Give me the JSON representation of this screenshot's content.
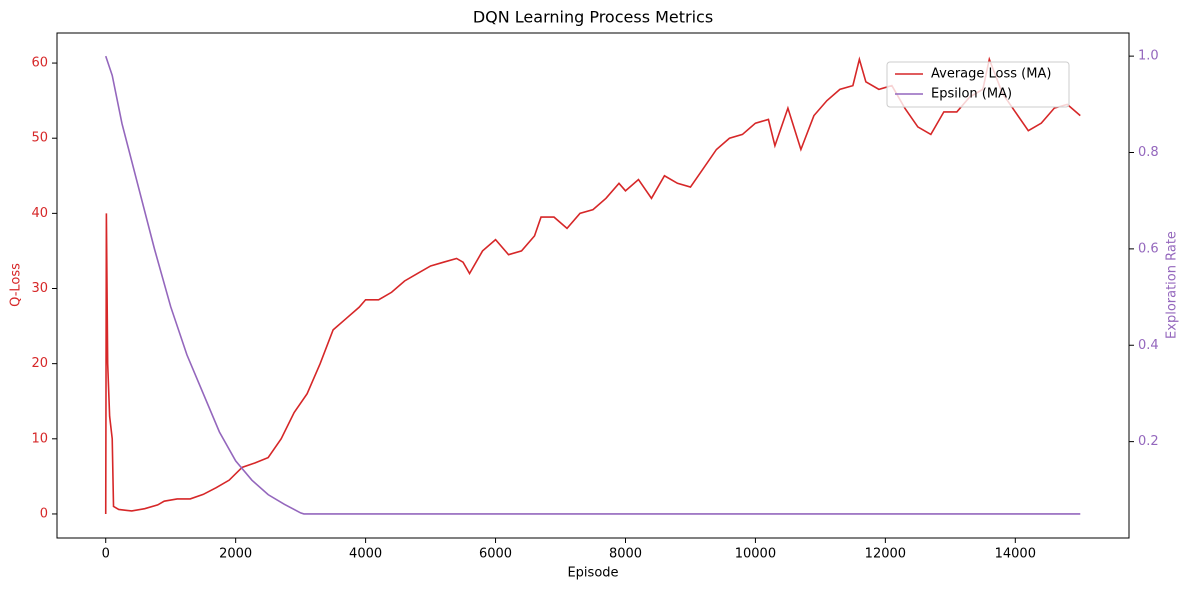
{
  "chart_data": {
    "type": "line",
    "title": "DQN Learning Process Metrics",
    "x_label": "Episode",
    "y_label": "Q-Loss",
    "y2_label": "Exploration Rate",
    "xlim": [
      -750,
      15750
    ],
    "xticks": [
      0,
      2000,
      4000,
      6000,
      8000,
      10000,
      12000,
      14000
    ],
    "ylim": [
      -3.2,
      64
    ],
    "yticks": [
      0,
      10,
      20,
      30,
      40,
      50,
      60
    ],
    "y_color": "#d62728",
    "y2lim": [
      0,
      1.048
    ],
    "y2ticks": [
      0.2,
      0.4,
      0.6,
      0.8,
      {
        "value": 1,
        "label": "1.0"
      }
    ],
    "y2_color": "#9467bd",
    "legend": "upper right",
    "series": [
      {
        "name": "Average Loss (MA)",
        "color": "#d62728",
        "x": [
          0,
          10,
          30,
          60,
          100,
          120,
          200,
          400,
          600,
          800,
          900,
          1100,
          1300,
          1500,
          1700,
          1900,
          2100,
          2300,
          2500,
          2700,
          2900,
          3100,
          3300,
          3500,
          3700,
          3900,
          4000,
          4200,
          4400,
          4600,
          4800,
          5000,
          5200,
          5400,
          5500,
          5600,
          5800,
          6000,
          6200,
          6400,
          6600,
          6700,
          6900,
          7100,
          7300,
          7500,
          7700,
          7900,
          8000,
          8200,
          8400,
          8600,
          8800,
          9000,
          9200,
          9400,
          9600,
          9800,
          10000,
          10200,
          10300,
          10500,
          10700,
          10900,
          11100,
          11300,
          11500,
          11600,
          11700,
          11900,
          12100,
          12300,
          12500,
          12700,
          12900,
          13100,
          13300,
          13500,
          13600,
          13800,
          14000,
          14200,
          14400,
          14600,
          14800,
          15000
        ],
        "values": [
          0,
          40,
          20,
          13,
          10,
          1,
          0.6,
          0.4,
          0.7,
          1.2,
          1.7,
          2.0,
          2.0,
          2.6,
          3.5,
          4.5,
          6.2,
          6.8,
          7.5,
          10,
          13.5,
          16,
          20,
          24.5,
          26,
          27.5,
          28.5,
          28.5,
          29.5,
          31,
          32,
          33,
          33.5,
          34,
          33.5,
          32,
          35,
          36.5,
          34.5,
          35,
          37,
          39.5,
          39.5,
          38,
          40,
          40.5,
          42,
          44,
          43,
          44.5,
          42,
          45,
          44,
          43.5,
          46,
          48.5,
          50,
          50.5,
          52,
          52.5,
          49,
          54,
          48.5,
          53,
          55,
          56.5,
          57,
          60.5,
          57.5,
          56.5,
          57,
          54,
          51.5,
          50.5,
          53.5,
          53.5,
          55.5,
          56.5,
          60.5,
          56,
          53.5,
          51,
          52,
          54,
          54.5,
          53
        ]
      },
      {
        "name": "Epsilon (MA)",
        "color": "#9467bd",
        "axis": "y2",
        "x": [
          0,
          100,
          250,
          500,
          750,
          1000,
          1250,
          1500,
          1750,
          2000,
          2250,
          2500,
          2750,
          3000,
          3050,
          15000
        ],
        "values": [
          1.0,
          0.96,
          0.86,
          0.73,
          0.6,
          0.48,
          0.38,
          0.3,
          0.22,
          0.16,
          0.12,
          0.09,
          0.07,
          0.052,
          0.05,
          0.05
        ]
      }
    ]
  }
}
